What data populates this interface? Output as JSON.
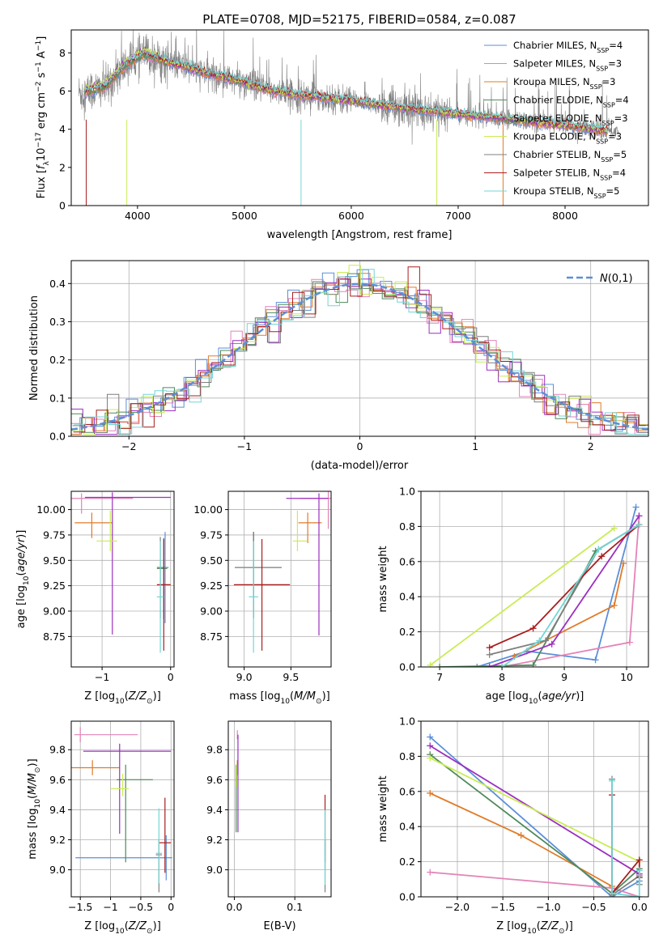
{
  "figure": {
    "title": "PLATE=0708, MJD=52175, FIBERID=0584, z=0.087"
  },
  "series_names": [
    "Chabrier MILES, N_SSP=4",
    "Salpeter MILES, N_SSP=3",
    "Kroupa MILES, N_SSP=3",
    "Chabrier ELODIE, N_SSP=4",
    "Salpeter ELODIE, N_SSP=3",
    "Kroupa ELODIE, N_SSP=3",
    "Chabrier STELIB, N_SSP=5",
    "Salpeter STELIB, N_SSP=4",
    "Kroupa STELIB, N_SSP=5"
  ],
  "series_colors": [
    "#5b8fd9",
    "#e383b8",
    "#e07b28",
    "#4f8a5a",
    "#9b30c0",
    "#c9ec55",
    "#7f7f7f",
    "#a81e1e",
    "#73d6d6"
  ],
  "chart_data": [
    {
      "type": "line",
      "title": "PLATE=0708, MJD=52175, FIBERID=0584, z=0.087",
      "xlabel": "wavelength [Angstrom, rest frame]",
      "ylabel": "Flux [f_λ 10^-17 erg cm^-2 s^-1 A^-1]",
      "xlim": [
        3380,
        8780
      ],
      "ylim": [
        0,
        9.2
      ],
      "xticks": [
        4000,
        5000,
        6000,
        7000,
        8000
      ],
      "yticks": [
        0,
        2,
        4,
        6,
        8
      ],
      "legend": "right",
      "continuum_points": [
        [
          3500,
          5.9
        ],
        [
          3700,
          6.2
        ],
        [
          3900,
          7.4
        ],
        [
          4050,
          7.9
        ],
        [
          4300,
          7.5
        ],
        [
          4600,
          7.0
        ],
        [
          4900,
          6.6
        ],
        [
          5200,
          6.1
        ],
        [
          5500,
          5.8
        ],
        [
          6000,
          5.5
        ],
        [
          6500,
          5.1
        ],
        [
          7000,
          4.8
        ],
        [
          7500,
          4.5
        ],
        [
          8000,
          4.2
        ],
        [
          8400,
          3.9
        ]
      ],
      "spectrum_range_data": [
        3450,
        8500
      ],
      "model_range": [
        3500,
        8400
      ]
    },
    {
      "type": "line",
      "xlabel": "(data-model)/error",
      "ylabel": "Normed distribution",
      "xlim": [
        -2.5,
        2.5
      ],
      "ylim": [
        0,
        0.46
      ],
      "xticks": [
        -2,
        -1,
        0,
        1,
        2
      ],
      "yticks": [
        0.0,
        0.1,
        0.2,
        0.3,
        0.4
      ],
      "reference_label": "N(0,1)",
      "reference": {
        "name": "N(0,1)",
        "mean": 0,
        "sigma": 1
      },
      "histogram": {
        "bins": 50,
        "range": [
          -2.5,
          2.5
        ]
      },
      "legend": "top-right",
      "grid": true
    },
    {
      "type": "scatter",
      "xlabel": "Z [log10(Z/Z_sun)]",
      "ylabel": "age [log10(age/yr)]",
      "xlim": [
        -1.45,
        0.05
      ],
      "ylim": [
        8.45,
        10.18
      ],
      "xticks": [
        -1,
        0
      ],
      "yticks": [
        8.75,
        9.0,
        9.25,
        9.5,
        9.75,
        10.0
      ],
      "points": [
        {
          "series": 0,
          "x": -0.08,
          "y": 9.43,
          "xerr": [
            0.1,
            0.05
          ],
          "yerr": [
            0.55,
            0.35
          ]
        },
        {
          "series": 1,
          "x": -1.3,
          "y": 10.11,
          "xerr": [
            0.15,
            0.75
          ],
          "yerr": [
            0.15,
            0.05
          ]
        },
        {
          "series": 2,
          "x": -1.15,
          "y": 9.87,
          "xerr": [
            0.25,
            0.3
          ],
          "yerr": [
            0.15,
            0.1
          ]
        },
        {
          "series": 3,
          "x": -0.1,
          "y": 9.42,
          "xerr": [
            0.1,
            0.05
          ],
          "yerr": [
            0.5,
            0.3
          ]
        },
        {
          "series": 4,
          "x": -0.85,
          "y": 10.12,
          "xerr": [
            0.4,
            0.85
          ],
          "yerr": [
            1.35,
            0.05
          ]
        },
        {
          "series": 5,
          "x": -0.88,
          "y": 9.69,
          "xerr": [
            0.2,
            0.1
          ],
          "yerr": [
            0.1,
            0.3
          ]
        },
        {
          "series": 6,
          "x": -0.15,
          "y": 9.43,
          "xerr": [
            0.05,
            0.05
          ],
          "yerr": [
            0.5,
            0.3
          ]
        },
        {
          "series": 7,
          "x": -0.1,
          "y": 9.26,
          "xerr": [
            0.1,
            0.1
          ],
          "yerr": [
            0.65,
            0.45
          ]
        },
        {
          "series": 8,
          "x": -0.15,
          "y": 9.14,
          "xerr": [
            0.05,
            0.05
          ],
          "yerr": [
            0.55,
            0.55
          ]
        }
      ]
    },
    {
      "type": "scatter",
      "xlabel": "mass [log10(M/M_sun)]",
      "xlim": [
        8.83,
        9.93
      ],
      "ylim": [
        8.45,
        10.18
      ],
      "xticks": [
        9.0,
        9.5
      ],
      "yticks": [
        8.75,
        9.0,
        9.25,
        9.5,
        9.75,
        10.0
      ],
      "points": [
        {
          "series": 0,
          "x": 9.1,
          "y": 9.43,
          "xerr": [
            0.2,
            0.3
          ],
          "yerr": [
            0.3,
            0.35
          ]
        },
        {
          "series": 1,
          "x": 9.9,
          "y": 10.11,
          "xerr": [
            0.3,
            0.05
          ],
          "yerr": [
            0.3,
            0.08
          ]
        },
        {
          "series": 2,
          "x": 9.68,
          "y": 9.87,
          "xerr": [
            0.1,
            0.15
          ],
          "yerr": [
            0.2,
            0.1
          ]
        },
        {
          "series": 3,
          "x": 9.1,
          "y": 9.43,
          "xerr": [
            0.2,
            0.3
          ],
          "yerr": [
            0.5,
            0.35
          ]
        },
        {
          "series": 4,
          "x": 9.8,
          "y": 10.11,
          "xerr": [
            0.35,
            0.1
          ],
          "yerr": [
            1.35,
            0.05
          ]
        },
        {
          "series": 5,
          "x": 9.57,
          "y": 9.69,
          "xerr": [
            0.05,
            0.1
          ],
          "yerr": [
            0.1,
            0.3
          ]
        },
        {
          "series": 6,
          "x": 9.1,
          "y": 9.43,
          "xerr": [
            0.2,
            0.3
          ],
          "yerr": [
            0.5,
            0.35
          ]
        },
        {
          "series": 7,
          "x": 9.19,
          "y": 9.26,
          "xerr": [
            0.3,
            0.3
          ],
          "yerr": [
            0.65,
            0.45
          ]
        },
        {
          "series": 8,
          "x": 9.1,
          "y": 9.14,
          "xerr": [
            0.05,
            0.05
          ],
          "yerr": [
            0.55,
            0.55
          ]
        }
      ]
    },
    {
      "type": "line",
      "xlabel": "age [log10(age/yr)]",
      "ylabel": "mass weight",
      "xlim": [
        6.7,
        10.35
      ],
      "ylim": [
        0,
        1
      ],
      "xticks": [
        7,
        8,
        9,
        10
      ],
      "yticks": [
        0.0,
        0.2,
        0.4,
        0.6,
        0.8,
        1.0
      ],
      "grid": true,
      "series": [
        {
          "index": 0,
          "points": [
            [
              7.6,
              0.0
            ],
            [
              8.4,
              0.09
            ],
            [
              9.5,
              0.04
            ],
            [
              10.15,
              0.91
            ]
          ]
        },
        {
          "index": 1,
          "points": [
            [
              8.0,
              0.0
            ],
            [
              10.05,
              0.14
            ],
            [
              10.2,
              0.86
            ]
          ]
        },
        {
          "index": 2,
          "points": [
            [
              8.2,
              0.06
            ],
            [
              9.8,
              0.35
            ],
            [
              9.95,
              0.59
            ]
          ]
        },
        {
          "index": 3,
          "points": [
            [
              7.0,
              0.0
            ],
            [
              8.5,
              0.01
            ],
            [
              9.5,
              0.66
            ],
            [
              10.2,
              0.81
            ]
          ]
        },
        {
          "index": 4,
          "points": [
            [
              7.8,
              0.0
            ],
            [
              8.8,
              0.13
            ],
            [
              10.2,
              0.86
            ]
          ]
        },
        {
          "index": 5,
          "points": [
            [
              6.85,
              0.01
            ],
            [
              9.8,
              0.79
            ]
          ]
        },
        {
          "index": 6,
          "points": [
            [
              7.8,
              0.07
            ],
            [
              8.7,
              0.15
            ],
            [
              9.55,
              0.67
            ],
            [
              10.2,
              0.81
            ]
          ]
        },
        {
          "index": 7,
          "points": [
            [
              7.8,
              0.11
            ],
            [
              8.5,
              0.22
            ],
            [
              9.6,
              0.63
            ],
            [
              10.2,
              0.81
            ]
          ]
        },
        {
          "index": 8,
          "points": [
            [
              8.0,
              0.0
            ],
            [
              8.6,
              0.15
            ],
            [
              9.55,
              0.67
            ],
            [
              10.2,
              0.81
            ]
          ]
        }
      ]
    },
    {
      "type": "scatter",
      "xlabel": "Z [log10(Z/Z_sun)]",
      "ylabel": "mass [log10(M/M_sun)]",
      "xlim": [
        -1.65,
        0.05
      ],
      "ylim": [
        8.82,
        9.99
      ],
      "xticks": [
        -1.5,
        -1.0,
        -0.5,
        0.0
      ],
      "yticks": [
        9.0,
        9.2,
        9.4,
        9.6,
        9.8
      ],
      "points": [
        {
          "series": 0,
          "x": -0.08,
          "y": 9.08,
          "xerr": [
            1.5,
            0.1
          ],
          "yerr": [
            0.15,
            0.15
          ]
        },
        {
          "series": 1,
          "x": -1.5,
          "y": 9.9,
          "xerr": [
            0.1,
            0.95
          ],
          "yerr": [
            0.05,
            0.05
          ]
        },
        {
          "series": 2,
          "x": -1.3,
          "y": 9.68,
          "xerr": [
            0.35,
            0.45
          ],
          "yerr": [
            0.05,
            0.05
          ]
        },
        {
          "series": 3,
          "x": -0.75,
          "y": 9.6,
          "xerr": [
            0.15,
            0.45
          ],
          "yerr": [
            0.55,
            0.1
          ]
        },
        {
          "series": 4,
          "x": -0.85,
          "y": 9.79,
          "xerr": [
            0.6,
            0.85
          ],
          "yerr": [
            0.55,
            0.05
          ]
        },
        {
          "series": 5,
          "x": -0.8,
          "y": 9.54,
          "xerr": [
            0.2,
            0.1
          ],
          "yerr": [
            0.05,
            0.1
          ]
        },
        {
          "series": 6,
          "x": -0.2,
          "y": 9.1,
          "xerr": [
            0.05,
            0.05
          ],
          "yerr": [
            0.25,
            0.1
          ]
        },
        {
          "series": 7,
          "x": -0.1,
          "y": 9.18,
          "xerr": [
            0.1,
            0.1
          ],
          "yerr": [
            0.2,
            0.3
          ]
        },
        {
          "series": 8,
          "x": -0.2,
          "y": 9.11,
          "xerr": [
            0.05,
            0.05
          ],
          "yerr": [
            0.2,
            0.3
          ]
        }
      ]
    },
    {
      "type": "scatter",
      "xlabel": "E(B-V)",
      "xlim": [
        -0.01,
        0.16
      ],
      "ylim": [
        8.82,
        9.99
      ],
      "xticks": [
        0.0,
        0.1
      ],
      "yticks": [
        9.0,
        9.2,
        9.4,
        9.6,
        9.8
      ],
      "points": [
        {
          "series": 0,
          "x": 0.15,
          "y": 9.1,
          "xerr": [
            0,
            0
          ],
          "yerr": [
            0.1,
            0.1
          ]
        },
        {
          "series": 1,
          "x": 0.005,
          "y": 9.9,
          "xerr": [
            0,
            0
          ],
          "yerr": [
            0.03,
            0.03
          ]
        },
        {
          "series": 2,
          "x": 0.005,
          "y": 9.68,
          "xerr": [
            0,
            0
          ],
          "yerr": [
            0.05,
            0.05
          ]
        },
        {
          "series": 3,
          "x": 0.003,
          "y": 9.6,
          "xerr": [
            0,
            0
          ],
          "yerr": [
            0.35,
            0.1
          ]
        },
        {
          "series": 4,
          "x": 0.006,
          "y": 9.75,
          "xerr": [
            0,
            0
          ],
          "yerr": [
            0.5,
            0.15
          ]
        },
        {
          "series": 5,
          "x": 0.004,
          "y": 9.6,
          "xerr": [
            0,
            0
          ],
          "yerr": [
            0.05,
            0.1
          ]
        },
        {
          "series": 6,
          "x": 0.15,
          "y": 9.1,
          "xerr": [
            0,
            0
          ],
          "yerr": [
            0.25,
            0.1
          ]
        },
        {
          "series": 7,
          "x": 0.15,
          "y": 9.2,
          "xerr": [
            0,
            0
          ],
          "yerr": [
            0.15,
            0.3
          ]
        },
        {
          "series": 8,
          "x": 0.15,
          "y": 9.15,
          "xerr": [
            0,
            0
          ],
          "yerr": [
            0.25,
            0.25
          ]
        }
      ]
    },
    {
      "type": "line",
      "xlabel": "Z [log10(Z/Z_sun)]",
      "ylabel": "mass weight",
      "xlim": [
        -2.4,
        0.1
      ],
      "ylim": [
        0,
        1
      ],
      "xticks": [
        -2.0,
        -1.5,
        -1.0,
        -0.5,
        0.0
      ],
      "yticks": [
        0.0,
        0.2,
        0.4,
        0.6,
        0.8,
        1.0
      ],
      "grid": true,
      "series": [
        {
          "index": 0,
          "points": [
            [
              -2.3,
              0.91
            ],
            [
              -0.3,
              0.0
            ],
            [
              0.0,
              0.09
            ]
          ]
        },
        {
          "index": 1,
          "points": [
            [
              -2.3,
              0.14
            ],
            [
              -0.3,
              0.05
            ],
            [
              0.0,
              0.0
            ]
          ]
        },
        {
          "index": 2,
          "points": [
            [
              -2.3,
              0.59
            ],
            [
              -1.3,
              0.35
            ],
            [
              -0.3,
              0.06
            ]
          ]
        },
        {
          "index": 3,
          "points": [
            [
              -2.3,
              0.81
            ],
            [
              -0.3,
              0.02
            ],
            [
              0.0,
              0.16
            ]
          ]
        },
        {
          "index": 4,
          "points": [
            [
              -2.3,
              0.86
            ],
            [
              0.0,
              0.13
            ]
          ]
        },
        {
          "index": 5,
          "points": [
            [
              -2.3,
              0.79
            ],
            [
              0.0,
              0.2
            ]
          ]
        },
        {
          "index": 6,
          "points": [
            [
              -0.3,
              0.67
            ],
            [
              -0.3,
              0.01
            ],
            [
              0.0,
              0.12
            ],
            [
              0.0,
              0.07
            ]
          ]
        },
        {
          "index": 7,
          "points": [
            [
              -0.3,
              0.58
            ],
            [
              -0.3,
              0.02
            ],
            [
              0.0,
              0.21
            ],
            [
              0.0,
              0.11
            ]
          ]
        },
        {
          "index": 8,
          "points": [
            [
              -0.3,
              0.66
            ],
            [
              -0.3,
              0.02
            ],
            [
              0.0,
              0.0
            ],
            [
              0.0,
              0.15
            ]
          ]
        }
      ]
    }
  ]
}
